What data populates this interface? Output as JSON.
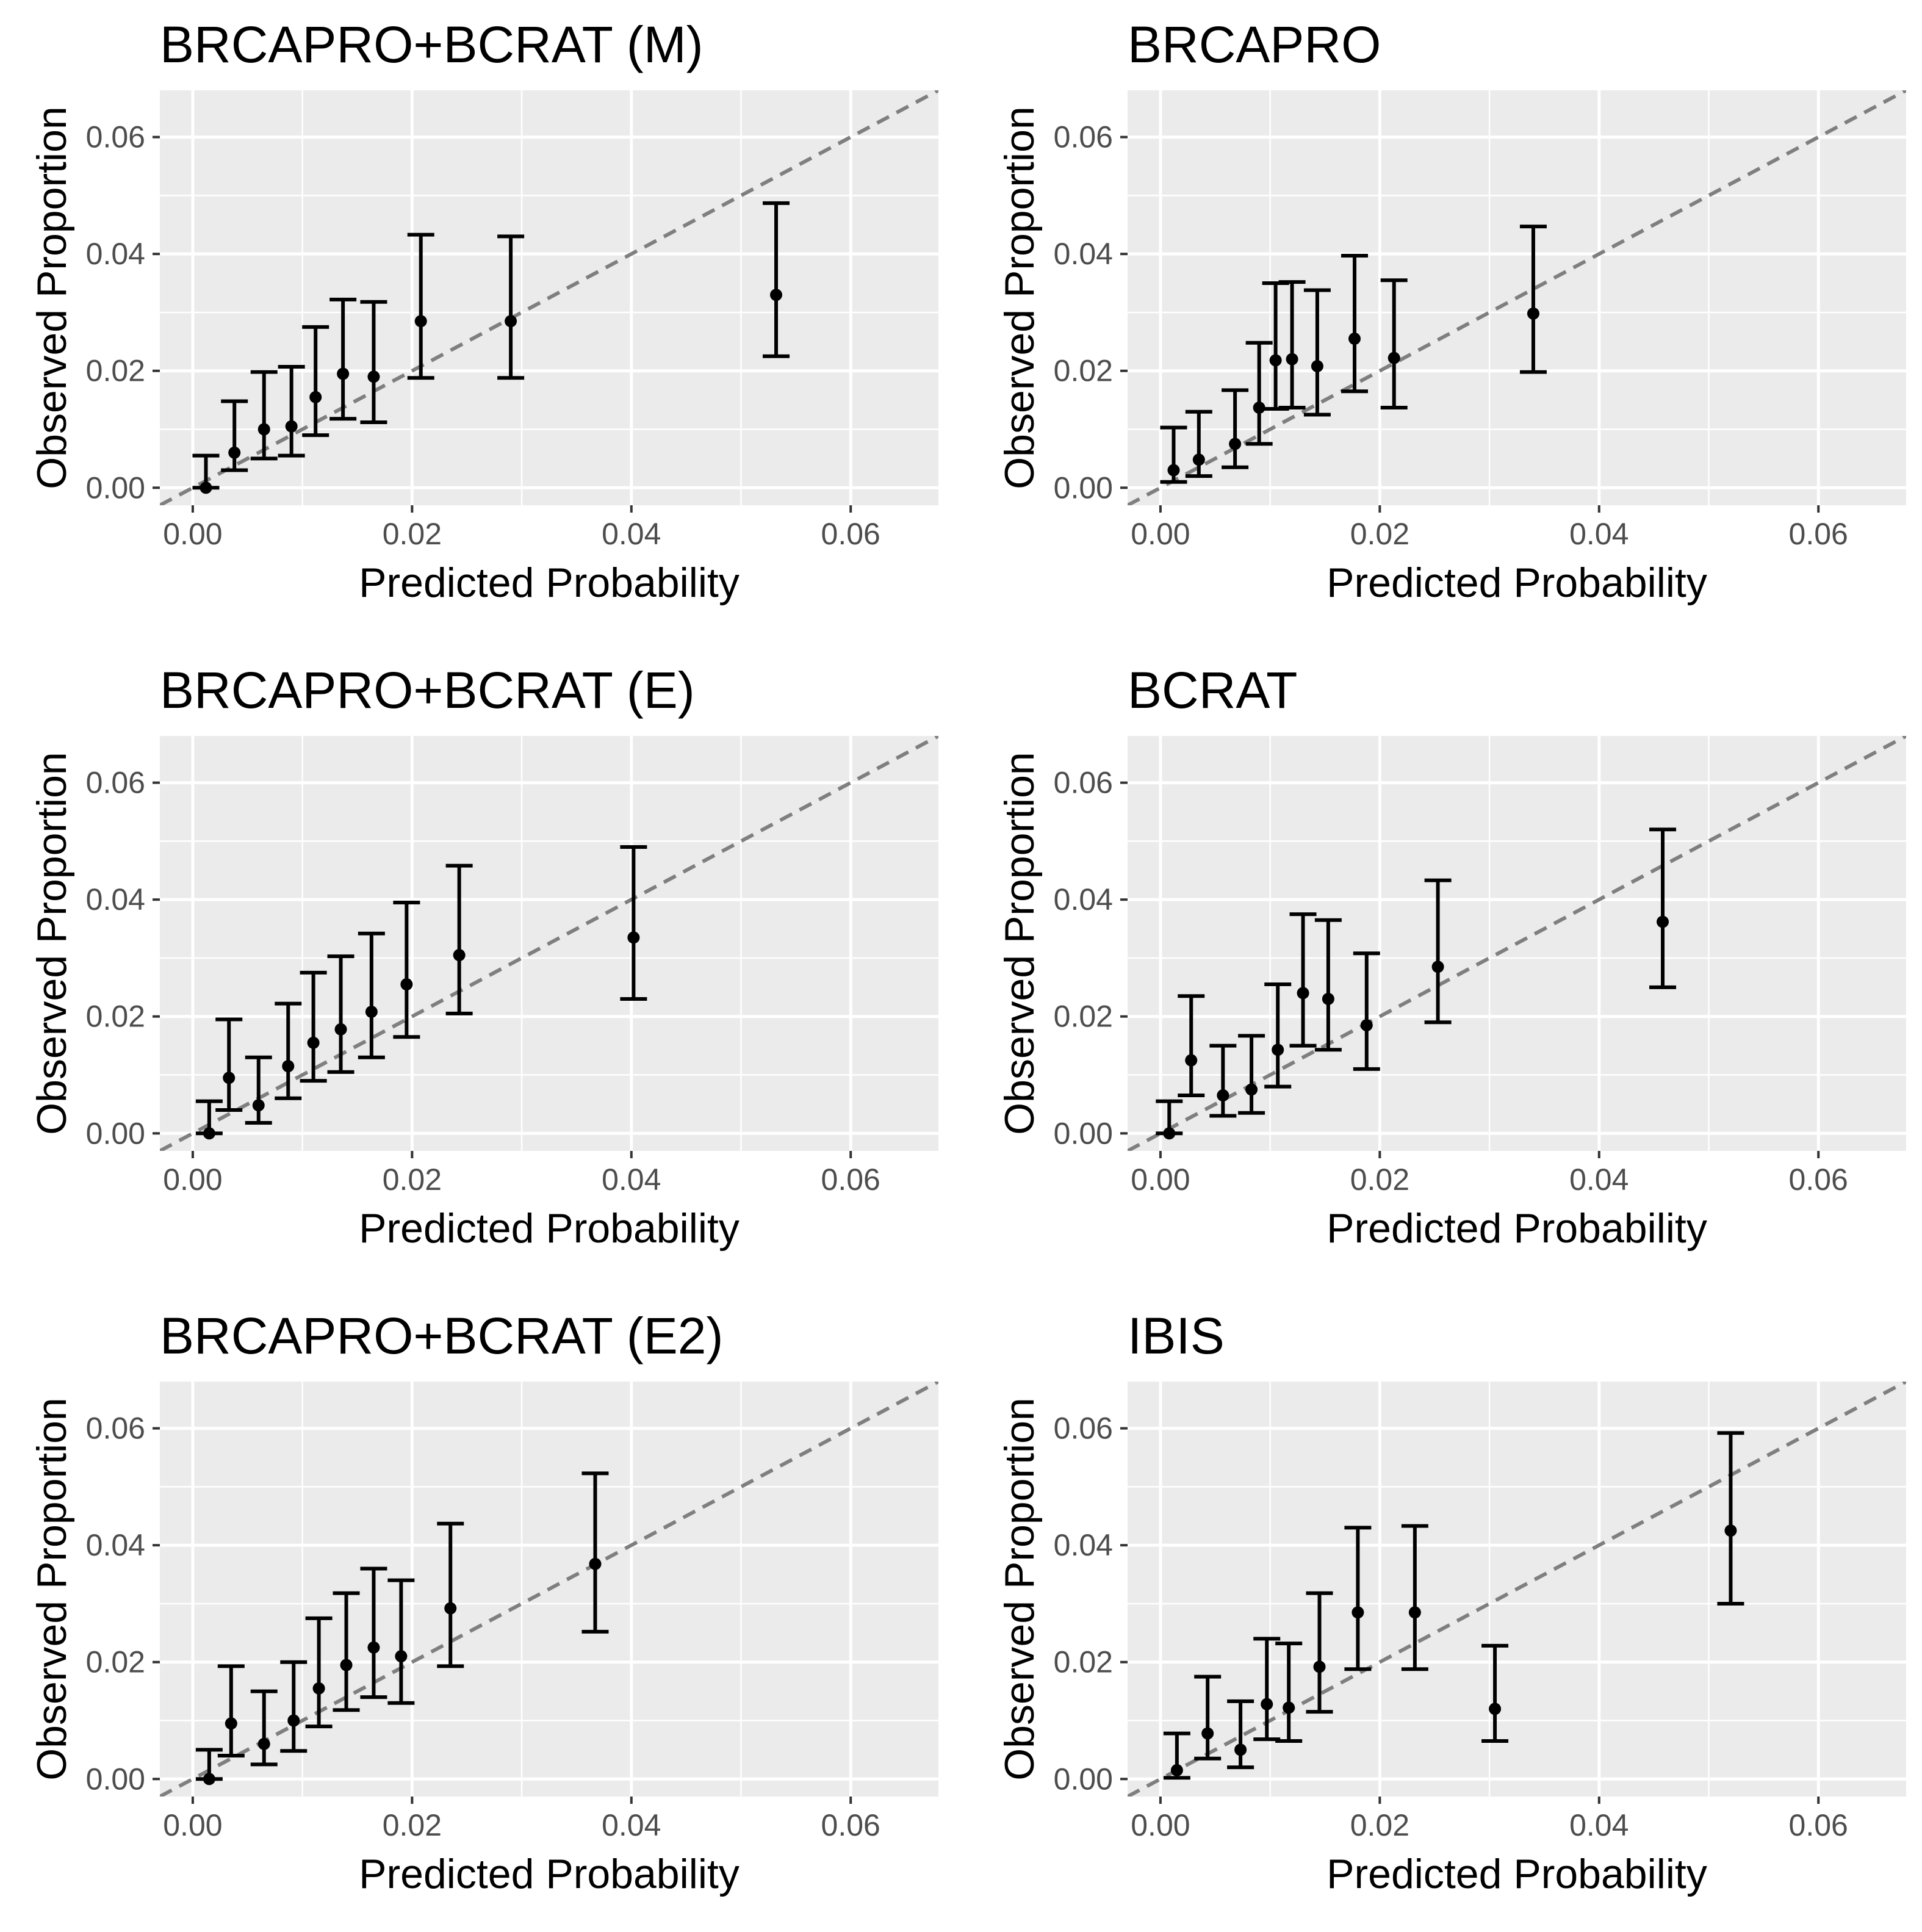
{
  "chart_data": [
    {
      "type": "scatter",
      "title": "BRCAPRO+BCRAT (M)",
      "xlabel": "Predicted Probability",
      "ylabel": "Observed Proportion",
      "xlim": [
        -0.003,
        0.068
      ],
      "ylim": [
        -0.003,
        0.068
      ],
      "xticks": [
        "0.00",
        "0.02",
        "0.04",
        "0.06"
      ],
      "yticks": [
        "0.00",
        "0.02",
        "0.04",
        "0.06"
      ],
      "reference_line": "y = x",
      "points": [
        {
          "x": 0.0012,
          "y": 0.0,
          "lo": 0.0,
          "hi": 0.0055
        },
        {
          "x": 0.0038,
          "y": 0.006,
          "lo": 0.003,
          "hi": 0.0148
        },
        {
          "x": 0.0065,
          "y": 0.01,
          "lo": 0.005,
          "hi": 0.0198
        },
        {
          "x": 0.009,
          "y": 0.0105,
          "lo": 0.0055,
          "hi": 0.0207
        },
        {
          "x": 0.0112,
          "y": 0.0155,
          "lo": 0.009,
          "hi": 0.0275
        },
        {
          "x": 0.0137,
          "y": 0.0195,
          "lo": 0.0118,
          "hi": 0.0322
        },
        {
          "x": 0.0165,
          "y": 0.019,
          "lo": 0.0112,
          "hi": 0.0318
        },
        {
          "x": 0.0208,
          "y": 0.0285,
          "lo": 0.0188,
          "hi": 0.0433
        },
        {
          "x": 0.029,
          "y": 0.0285,
          "lo": 0.0188,
          "hi": 0.043
        },
        {
          "x": 0.0532,
          "y": 0.033,
          "lo": 0.0225,
          "hi": 0.0487
        }
      ]
    },
    {
      "type": "scatter",
      "title": "BRCAPRO",
      "xlabel": "Predicted Probability",
      "ylabel": "Observed Proportion",
      "xlim": [
        -0.003,
        0.068
      ],
      "ylim": [
        -0.003,
        0.068
      ],
      "xticks": [
        "0.00",
        "0.02",
        "0.04",
        "0.06"
      ],
      "yticks": [
        "0.00",
        "0.02",
        "0.04",
        "0.06"
      ],
      "reference_line": "y = x",
      "points": [
        {
          "x": 0.0012,
          "y": 0.003,
          "lo": 0.001,
          "hi": 0.0103
        },
        {
          "x": 0.0035,
          "y": 0.0048,
          "lo": 0.002,
          "hi": 0.013
        },
        {
          "x": 0.0068,
          "y": 0.0075,
          "lo": 0.0035,
          "hi": 0.0167
        },
        {
          "x": 0.009,
          "y": 0.0137,
          "lo": 0.0075,
          "hi": 0.0248
        },
        {
          "x": 0.0105,
          "y": 0.0218,
          "lo": 0.0135,
          "hi": 0.035
        },
        {
          "x": 0.012,
          "y": 0.022,
          "lo": 0.0137,
          "hi": 0.0352
        },
        {
          "x": 0.0143,
          "y": 0.0208,
          "lo": 0.0125,
          "hi": 0.0338
        },
        {
          "x": 0.0177,
          "y": 0.0255,
          "lo": 0.0165,
          "hi": 0.0397
        },
        {
          "x": 0.0213,
          "y": 0.0222,
          "lo": 0.0137,
          "hi": 0.0355
        },
        {
          "x": 0.034,
          "y": 0.0298,
          "lo": 0.0198,
          "hi": 0.0447
        }
      ]
    },
    {
      "type": "scatter",
      "title": "BRCAPRO+BCRAT (E)",
      "xlabel": "Predicted Probability",
      "ylabel": "Observed Proportion",
      "xlim": [
        -0.003,
        0.068
      ],
      "ylim": [
        -0.003,
        0.068
      ],
      "xticks": [
        "0.00",
        "0.02",
        "0.04",
        "0.06"
      ],
      "yticks": [
        "0.00",
        "0.02",
        "0.04",
        "0.06"
      ],
      "reference_line": "y = x",
      "points": [
        {
          "x": 0.0015,
          "y": 0.0,
          "lo": 0.0,
          "hi": 0.0055
        },
        {
          "x": 0.0033,
          "y": 0.0095,
          "lo": 0.004,
          "hi": 0.0195
        },
        {
          "x": 0.006,
          "y": 0.0048,
          "lo": 0.0018,
          "hi": 0.013
        },
        {
          "x": 0.0087,
          "y": 0.0115,
          "lo": 0.006,
          "hi": 0.0222
        },
        {
          "x": 0.011,
          "y": 0.0155,
          "lo": 0.009,
          "hi": 0.0275
        },
        {
          "x": 0.0135,
          "y": 0.0178,
          "lo": 0.0105,
          "hi": 0.0303
        },
        {
          "x": 0.0163,
          "y": 0.0208,
          "lo": 0.013,
          "hi": 0.0342
        },
        {
          "x": 0.0195,
          "y": 0.0255,
          "lo": 0.0165,
          "hi": 0.0395
        },
        {
          "x": 0.0243,
          "y": 0.0305,
          "lo": 0.0205,
          "hi": 0.0458
        },
        {
          "x": 0.0402,
          "y": 0.0335,
          "lo": 0.023,
          "hi": 0.049
        }
      ]
    },
    {
      "type": "scatter",
      "title": "BCRAT",
      "xlabel": "Predicted Probability",
      "ylabel": "Observed Proportion",
      "xlim": [
        -0.003,
        0.068
      ],
      "ylim": [
        -0.003,
        0.068
      ],
      "xticks": [
        "0.00",
        "0.02",
        "0.04",
        "0.06"
      ],
      "yticks": [
        "0.00",
        "0.02",
        "0.04",
        "0.06"
      ],
      "reference_line": "y = x",
      "points": [
        {
          "x": 0.0008,
          "y": 0.0,
          "lo": 0.0,
          "hi": 0.0055
        },
        {
          "x": 0.0028,
          "y": 0.0125,
          "lo": 0.0065,
          "hi": 0.0235
        },
        {
          "x": 0.0057,
          "y": 0.0065,
          "lo": 0.003,
          "hi": 0.015
        },
        {
          "x": 0.0083,
          "y": 0.0075,
          "lo": 0.0035,
          "hi": 0.0167
        },
        {
          "x": 0.0107,
          "y": 0.0143,
          "lo": 0.008,
          "hi": 0.0255
        },
        {
          "x": 0.013,
          "y": 0.024,
          "lo": 0.015,
          "hi": 0.0375
        },
        {
          "x": 0.0153,
          "y": 0.023,
          "lo": 0.0143,
          "hi": 0.0365
        },
        {
          "x": 0.0188,
          "y": 0.0185,
          "lo": 0.011,
          "hi": 0.0308
        },
        {
          "x": 0.0253,
          "y": 0.0285,
          "lo": 0.019,
          "hi": 0.0433
        },
        {
          "x": 0.0458,
          "y": 0.0362,
          "lo": 0.025,
          "hi": 0.052
        }
      ]
    },
    {
      "type": "scatter",
      "title": "BRCAPRO+BCRAT (E2)",
      "xlabel": "Predicted Probability",
      "ylabel": "Observed Proportion",
      "xlim": [
        -0.003,
        0.068
      ],
      "ylim": [
        -0.003,
        0.068
      ],
      "xticks": [
        "0.00",
        "0.02",
        "0.04",
        "0.06"
      ],
      "yticks": [
        "0.00",
        "0.02",
        "0.04",
        "0.06"
      ],
      "reference_line": "y = x",
      "points": [
        {
          "x": 0.0015,
          "y": 0.0,
          "lo": 0.0,
          "hi": 0.005
        },
        {
          "x": 0.0035,
          "y": 0.0095,
          "lo": 0.004,
          "hi": 0.0193
        },
        {
          "x": 0.0065,
          "y": 0.006,
          "lo": 0.0025,
          "hi": 0.015
        },
        {
          "x": 0.0092,
          "y": 0.01,
          "lo": 0.0048,
          "hi": 0.02
        },
        {
          "x": 0.0115,
          "y": 0.0155,
          "lo": 0.009,
          "hi": 0.0275
        },
        {
          "x": 0.014,
          "y": 0.0195,
          "lo": 0.0118,
          "hi": 0.0318
        },
        {
          "x": 0.0165,
          "y": 0.0225,
          "lo": 0.014,
          "hi": 0.036
        },
        {
          "x": 0.019,
          "y": 0.021,
          "lo": 0.013,
          "hi": 0.034
        },
        {
          "x": 0.0235,
          "y": 0.0292,
          "lo": 0.0193,
          "hi": 0.0437
        },
        {
          "x": 0.0367,
          "y": 0.0368,
          "lo": 0.0252,
          "hi": 0.0523
        }
      ]
    },
    {
      "type": "scatter",
      "title": "IBIS",
      "xlabel": "Predicted Probability",
      "ylabel": "Observed Proportion",
      "xlim": [
        -0.003,
        0.068
      ],
      "ylim": [
        -0.003,
        0.068
      ],
      "xticks": [
        "0.00",
        "0.02",
        "0.04",
        "0.06"
      ],
      "yticks": [
        "0.00",
        "0.02",
        "0.04",
        "0.06"
      ],
      "reference_line": "y = x",
      "points": [
        {
          "x": 0.0015,
          "y": 0.0015,
          "lo": 0.0002,
          "hi": 0.0078
        },
        {
          "x": 0.0043,
          "y": 0.0078,
          "lo": 0.0035,
          "hi": 0.0175
        },
        {
          "x": 0.0073,
          "y": 0.005,
          "lo": 0.002,
          "hi": 0.0133
        },
        {
          "x": 0.0097,
          "y": 0.0128,
          "lo": 0.0068,
          "hi": 0.024
        },
        {
          "x": 0.0117,
          "y": 0.0122,
          "lo": 0.0065,
          "hi": 0.0232
        },
        {
          "x": 0.0145,
          "y": 0.0192,
          "lo": 0.0115,
          "hi": 0.0318
        },
        {
          "x": 0.018,
          "y": 0.0285,
          "lo": 0.0188,
          "hi": 0.043
        },
        {
          "x": 0.0232,
          "y": 0.0285,
          "lo": 0.0188,
          "hi": 0.0433
        },
        {
          "x": 0.0305,
          "y": 0.012,
          "lo": 0.0065,
          "hi": 0.0228
        },
        {
          "x": 0.052,
          "y": 0.0425,
          "lo": 0.03,
          "hi": 0.0592
        }
      ]
    }
  ]
}
